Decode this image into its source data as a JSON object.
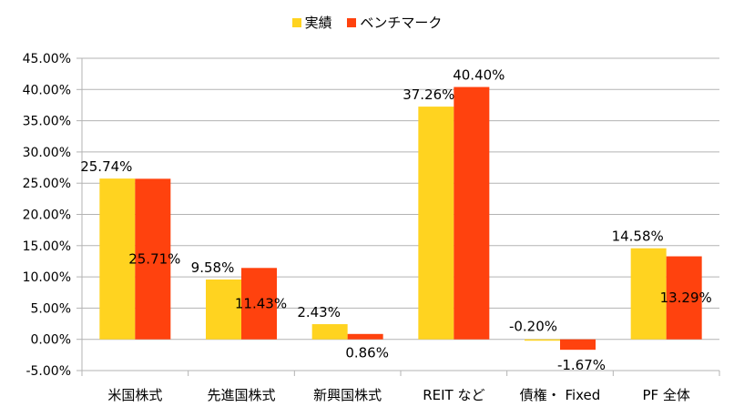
{
  "chart_data": {
    "type": "bar",
    "categories": [
      "米国株式",
      "先進国株式",
      "新興国株式",
      "REIT など",
      "債権・ Fixed",
      "PF 全体"
    ],
    "series": [
      {
        "name": "実績",
        "color": "#FFD320",
        "values": [
          25.74,
          9.58,
          2.43,
          37.26,
          -0.2,
          14.58
        ],
        "labels": [
          "25.74%",
          "9.58%",
          "2.43%",
          "37.26%",
          "-0.20%",
          "14.58%"
        ]
      },
      {
        "name": "ベンチマーク",
        "color": "#FF420E",
        "values": [
          25.71,
          11.43,
          0.86,
          40.4,
          -1.67,
          13.29
        ],
        "labels": [
          "25.71%",
          "11.43%",
          "0.86%",
          "40.40%",
          "-1.67%",
          "13.29%"
        ]
      }
    ],
    "ylim": [
      -5,
      45
    ],
    "yticks": [
      "45.00%",
      "40.00%",
      "35.00%",
      "30.00%",
      "25.00%",
      "20.00%",
      "15.00%",
      "10.00%",
      "5.00%",
      "0.00%",
      "-5.00%"
    ],
    "ytick_values": [
      45,
      40,
      35,
      30,
      25,
      20,
      15,
      10,
      5,
      0,
      -5
    ],
    "grid": true,
    "legend_position": "top-center",
    "gridline_color": "#b3b3b3"
  }
}
